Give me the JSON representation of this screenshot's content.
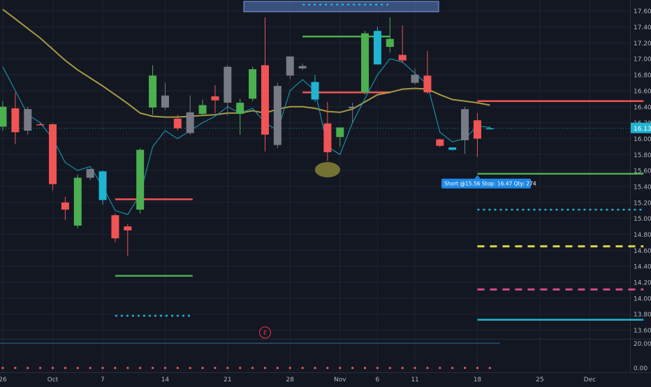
{
  "theme": {
    "background": "#131722",
    "grid": "#1f2433",
    "axis_text": "#b2b5be",
    "bull_green": "#4caf50",
    "bear_red": "#f05454",
    "cyan": "#1fb4d2",
    "gray": "#787b86",
    "ema_yellow": "#b5a846",
    "signal_label_bg": "#1e88e5",
    "earnings_marker": "#f23645"
  },
  "chart_data": {
    "type": "candlestick",
    "title": "",
    "ylim": [
      13.5,
      17.72
    ],
    "grid": true,
    "y_ticks": [
      "17.60",
      "17.40",
      "17.20",
      "17.00",
      "16.80",
      "16.60",
      "16.40",
      "16.20",
      "16.00",
      "15.80",
      "15.60",
      "15.40",
      "15.20",
      "15.00",
      "14.80",
      "14.60",
      "14.40",
      "14.20",
      "14.00",
      "13.80",
      "13.60"
    ],
    "x_ticks": [
      {
        "label": "26",
        "index": 0
      },
      {
        "label": "Oct",
        "index": 4
      },
      {
        "label": "7",
        "index": 8
      },
      {
        "label": "14",
        "index": 13
      },
      {
        "label": "21",
        "index": 18
      },
      {
        "label": "28",
        "index": 23
      },
      {
        "label": "Nov",
        "index": 27
      },
      {
        "label": "6",
        "index": 30
      },
      {
        "label": "11",
        "index": 33
      },
      {
        "label": "18",
        "index": 38
      },
      {
        "label": "25",
        "index": 43
      },
      {
        "label": "Dec",
        "index": 47
      }
    ],
    "candles": [
      {
        "o": 16.4,
        "h": 16.47,
        "l": 16.1,
        "c": 16.15,
        "color": "bull"
      },
      {
        "o": 16.38,
        "h": 16.58,
        "l": 15.93,
        "c": 16.08,
        "color": "bear"
      },
      {
        "o": 16.1,
        "h": 16.4,
        "l": 16.05,
        "c": 16.37,
        "color": "gray"
      },
      {
        "o": 16.18,
        "h": 16.2,
        "l": 16.18,
        "c": 16.18,
        "color": "bear"
      },
      {
        "o": 16.18,
        "h": 16.19,
        "l": 15.35,
        "c": 15.43,
        "color": "bear"
      },
      {
        "o": 15.2,
        "h": 15.27,
        "l": 14.98,
        "c": 15.11,
        "color": "bear"
      },
      {
        "o": 14.91,
        "h": 15.55,
        "l": 14.88,
        "c": 15.51,
        "color": "bull"
      },
      {
        "o": 15.51,
        "h": 15.62,
        "l": 15.48,
        "c": 15.62,
        "color": "gray"
      },
      {
        "o": 15.59,
        "h": 15.6,
        "l": 15.17,
        "c": 15.23,
        "color": "cyan"
      },
      {
        "o": 15.04,
        "h": 15.06,
        "l": 14.7,
        "c": 14.75,
        "color": "bear"
      },
      {
        "o": 14.9,
        "h": 14.93,
        "l": 14.53,
        "c": 14.85,
        "color": "bear"
      },
      {
        "o": 15.11,
        "h": 15.88,
        "l": 15.06,
        "c": 15.86,
        "color": "bull"
      },
      {
        "o": 16.39,
        "h": 16.92,
        "l": 16.3,
        "c": 16.79,
        "color": "bull"
      },
      {
        "o": 16.54,
        "h": 16.7,
        "l": 16.36,
        "c": 16.39,
        "color": "gray"
      },
      {
        "o": 16.25,
        "h": 16.3,
        "l": 16.1,
        "c": 16.13,
        "color": "bear"
      },
      {
        "o": 16.07,
        "h": 16.54,
        "l": 16.05,
        "c": 16.33,
        "color": "gray"
      },
      {
        "o": 16.31,
        "h": 16.49,
        "l": 16.29,
        "c": 16.42,
        "color": "bull"
      },
      {
        "o": 16.48,
        "h": 16.67,
        "l": 16.32,
        "c": 16.53,
        "color": "bear"
      },
      {
        "o": 16.45,
        "h": 16.92,
        "l": 16.29,
        "c": 16.9,
        "color": "gray"
      },
      {
        "o": 16.45,
        "h": 16.5,
        "l": 16.05,
        "c": 16.31,
        "color": "bull"
      },
      {
        "o": 16.5,
        "h": 16.9,
        "l": 16.47,
        "c": 16.87,
        "color": "bull"
      },
      {
        "o": 16.92,
        "h": 17.52,
        "l": 15.84,
        "c": 16.05,
        "color": "bear"
      },
      {
        "o": 15.92,
        "h": 16.7,
        "l": 15.88,
        "c": 16.66,
        "color": "gray"
      },
      {
        "o": 16.79,
        "h": 17.03,
        "l": 16.75,
        "c": 17.03,
        "color": "gray"
      },
      {
        "o": 16.88,
        "h": 16.94,
        "l": 16.86,
        "c": 16.91,
        "color": "gray"
      },
      {
        "o": 16.71,
        "h": 16.8,
        "l": 16.46,
        "c": 16.49,
        "color": "cyan"
      },
      {
        "o": 16.19,
        "h": 16.46,
        "l": 15.72,
        "c": 15.83,
        "color": "bear"
      },
      {
        "o": 16.02,
        "h": 16.14,
        "l": 15.9,
        "c": 16.14,
        "color": "bull"
      },
      {
        "o": 16.38,
        "h": 16.45,
        "l": 16.2,
        "c": 16.4,
        "color": "gray"
      },
      {
        "o": 16.58,
        "h": 17.35,
        "l": 16.55,
        "c": 17.32,
        "color": "bull"
      },
      {
        "o": 17.35,
        "h": 17.4,
        "l": 16.93,
        "c": 16.93,
        "color": "cyan"
      },
      {
        "o": 17.25,
        "h": 17.52,
        "l": 17.08,
        "c": 17.15,
        "color": "bull"
      },
      {
        "o": 17.05,
        "h": 17.42,
        "l": 16.95,
        "c": 16.98,
        "color": "bear"
      },
      {
        "o": 16.8,
        "h": 16.88,
        "l": 16.68,
        "c": 16.7,
        "color": "gray"
      },
      {
        "o": 16.79,
        "h": 17.1,
        "l": 16.56,
        "c": 16.58,
        "color": "bear"
      },
      {
        "o": 15.99,
        "h": 16.0,
        "l": 15.89,
        "c": 15.91,
        "color": "bear"
      },
      {
        "o": 15.89,
        "h": 15.89,
        "l": 15.85,
        "c": 15.86,
        "color": "cyan"
      },
      {
        "o": 15.98,
        "h": 16.4,
        "l": 15.81,
        "c": 16.37,
        "color": "gray"
      },
      {
        "o": 16.23,
        "h": 16.32,
        "l": 15.77,
        "c": 16.0,
        "color": "bear"
      },
      {
        "o": 16.12,
        "h": 16.15,
        "l": 16.12,
        "c": 16.13,
        "color": "cyan"
      }
    ],
    "series": [
      {
        "name": "",
        "color": "yellow",
        "values": [
          17.62,
          17.5,
          17.38,
          17.26,
          17.12,
          16.98,
          16.86,
          16.76,
          16.66,
          16.55,
          16.44,
          16.32,
          16.28,
          16.27,
          16.27,
          16.28,
          16.29,
          16.3,
          16.32,
          16.32,
          16.35,
          16.32,
          16.37,
          16.4,
          16.4,
          16.38,
          16.34,
          16.33,
          16.37,
          16.46,
          16.55,
          16.58,
          16.62,
          16.63,
          16.62,
          16.55,
          16.49,
          16.47,
          16.45,
          16.42
        ]
      },
      {
        "name": "",
        "color": "cyan",
        "values": [
          16.9,
          16.6,
          16.3,
          16.2,
          16.0,
          15.7,
          15.6,
          15.65,
          15.4,
          15.1,
          15.05,
          15.3,
          15.9,
          16.1,
          16.0,
          16.1,
          16.2,
          16.28,
          16.4,
          16.32,
          16.38,
          16.2,
          16.1,
          16.6,
          16.74,
          16.6,
          15.9,
          15.8,
          16.2,
          16.5,
          16.8,
          17.0,
          16.96,
          16.82,
          16.68,
          16.08,
          15.96,
          16.0,
          16.16,
          16.14
        ]
      }
    ],
    "levels": [
      {
        "price": 17.68,
        "from": 24.0,
        "to": 31.0,
        "color": "cyan",
        "style": "dotted"
      },
      {
        "price": 17.28,
        "from": 24.0,
        "to": 31.0,
        "color": "green",
        "style": "solid"
      },
      {
        "price": 16.58,
        "from": 24.0,
        "to": 31.0,
        "color": "red",
        "style": "solid"
      },
      {
        "price": 15.24,
        "from": 9.0,
        "to": 15.2,
        "color": "red",
        "style": "solid"
      },
      {
        "price": 14.28,
        "from": 9.0,
        "to": 15.2,
        "color": "green",
        "style": "solid"
      },
      {
        "price": 13.78,
        "from": 9.0,
        "to": 15.2,
        "color": "cyan",
        "style": "dotted"
      },
      {
        "price": 16.47,
        "from": 38.0,
        "to": 51.3,
        "color": "red",
        "style": "solid"
      },
      {
        "price": 15.56,
        "from": 38.0,
        "to": 51.3,
        "color": "green",
        "style": "solid"
      },
      {
        "price": 15.11,
        "from": 38.0,
        "to": 51.3,
        "color": "cyan",
        "style": "dotted"
      },
      {
        "price": 14.65,
        "from": 38.0,
        "to": 51.3,
        "color": "yellow",
        "style": "dashed"
      },
      {
        "price": 14.11,
        "from": 38.0,
        "to": 51.3,
        "color": "pink",
        "style": "dashed"
      },
      {
        "price": 13.73,
        "from": 38.0,
        "to": 51.3,
        "color": "cyan",
        "style": "solid"
      }
    ],
    "current_price": 16.13,
    "current_price_label": "16.13",
    "resistance_zone": {
      "from": 19.3,
      "to": 34.9,
      "top": 17.72,
      "bottom": 17.59
    },
    "swing_low_marker": {
      "index": 26.0,
      "price": 15.61
    },
    "signal_label": "Short @15.56 Stop: 16.47 Qty: 274",
    "earnings_marker": {
      "index": 21.0,
      "label": "E"
    },
    "oscillator": {
      "y_ticks": [
        "20.00",
        "0.00"
      ],
      "ylim": [
        -3,
        23
      ],
      "upper_level": 20.0,
      "dot_value": 0.0
    }
  }
}
